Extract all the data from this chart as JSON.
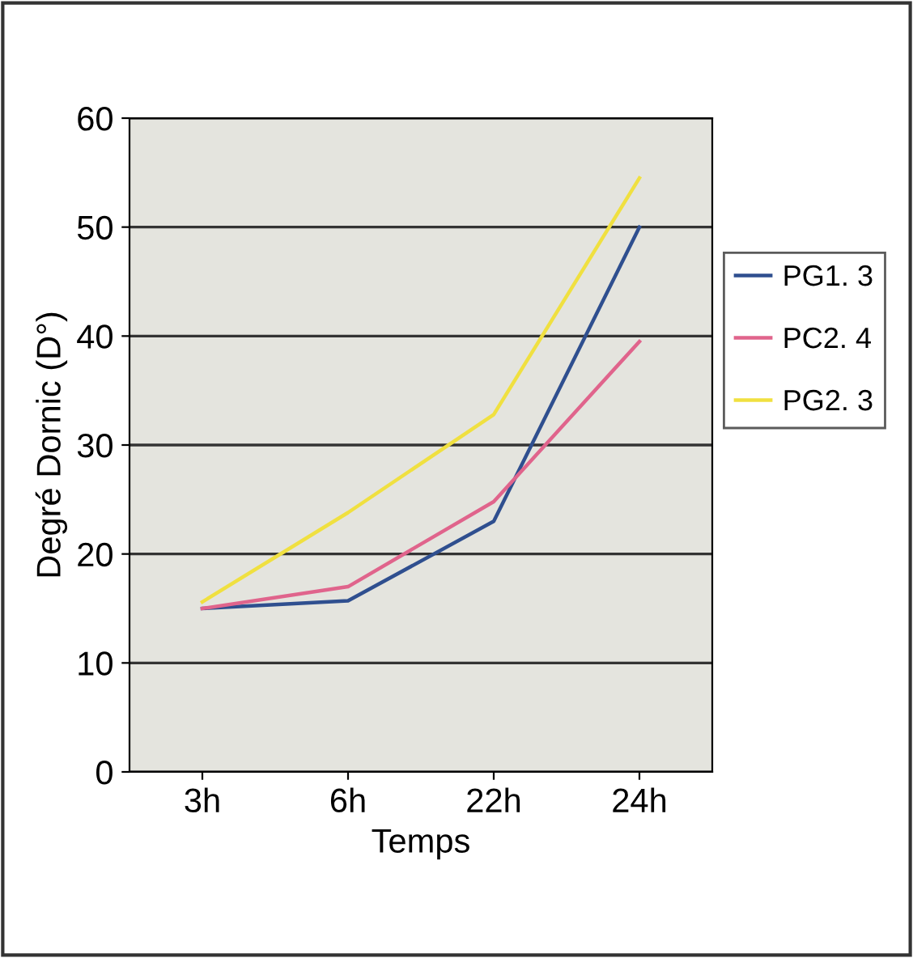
{
  "chart_data": {
    "type": "line",
    "xlabel": "Temps",
    "ylabel": "Degré Dornic (D°)",
    "categories": [
      "3h",
      "6h",
      "22h",
      "24h"
    ],
    "series": [
      {
        "name": "PG1. 3",
        "color": "#2f4f8f",
        "values": [
          15,
          15.7,
          23,
          50
        ]
      },
      {
        "name": "PC2. 4",
        "color": "#e0648c",
        "values": [
          15,
          17,
          24.8,
          39.5
        ]
      },
      {
        "name": "PG2. 3",
        "color": "#f0e040",
        "values": [
          15.6,
          23.8,
          32.8,
          54.5
        ]
      }
    ],
    "ylim": [
      0,
      60
    ],
    "yticks": [
      0,
      10,
      20,
      30,
      40,
      50,
      60
    ],
    "grid": "y",
    "legend": "right",
    "marker": "none",
    "line_style": "solid"
  }
}
